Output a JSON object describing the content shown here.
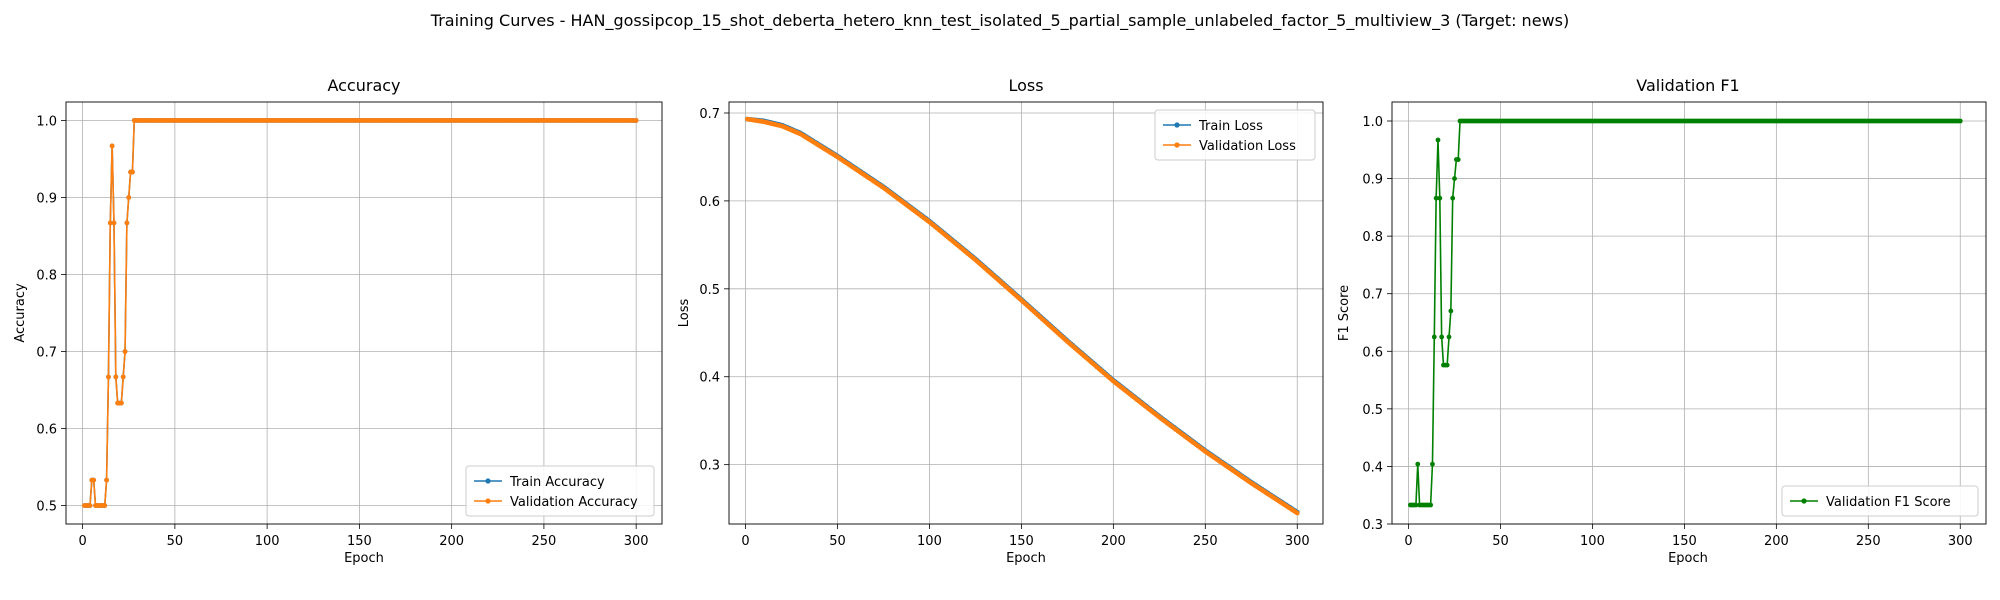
{
  "figure": {
    "title": "Training Curves - HAN_gossipcop_15_shot_deberta_hetero_knn_test_isolated_5_partial_sample_unlabeled_factor_5_multiview_3 (Target: news)"
  },
  "colors": {
    "blue": "#1f77b4",
    "orange": "#ff7f0e",
    "green": "#008000",
    "grid": "#b0b0b0"
  },
  "chart_data": [
    {
      "type": "line",
      "title": "Accuracy",
      "xlabel": "Epoch",
      "ylabel": "Accuracy",
      "xlim": [
        -9,
        314
      ],
      "ylim": [
        0.476,
        1.024
      ],
      "xticks": [
        0,
        50,
        100,
        150,
        200,
        250,
        300
      ],
      "yticks": [
        0.5,
        0.6,
        0.7,
        0.8,
        0.9,
        1.0
      ],
      "ytick_format": 1,
      "grid": true,
      "legend": "lower-right",
      "epochs": 300,
      "series": [
        {
          "name": "Train Accuracy",
          "color": "#1f77b4",
          "values": [
            0.5,
            0.5,
            0.5,
            0.5,
            0.533,
            0.533,
            0.5,
            0.5,
            0.5,
            0.5,
            0.5,
            0.5,
            0.533,
            0.667,
            0.867,
            0.967,
            0.867,
            0.667,
            0.633,
            0.633,
            0.633,
            0.667,
            0.7,
            0.867,
            0.9,
            0.933,
            0.933,
            1.0
          ],
          "tail_value": 1.0
        },
        {
          "name": "Validation Accuracy",
          "color": "#ff7f0e",
          "values": [
            0.5,
            0.5,
            0.5,
            0.5,
            0.533,
            0.533,
            0.5,
            0.5,
            0.5,
            0.5,
            0.5,
            0.5,
            0.533,
            0.667,
            0.867,
            0.967,
            0.867,
            0.667,
            0.633,
            0.633,
            0.633,
            0.667,
            0.7,
            0.867,
            0.9,
            0.933,
            0.933,
            1.0
          ],
          "tail_value": 1.0
        }
      ]
    },
    {
      "type": "line",
      "title": "Loss",
      "xlabel": "Epoch",
      "ylabel": "Loss",
      "xlim": [
        -9,
        314
      ],
      "ylim": [
        0.2325,
        0.7125
      ],
      "xticks": [
        0,
        50,
        100,
        150,
        200,
        250,
        300
      ],
      "yticks": [
        0.3,
        0.4,
        0.5,
        0.6,
        0.7
      ],
      "ytick_format": 1,
      "grid": true,
      "legend": "top-right",
      "epochs": 300,
      "series": [
        {
          "name": "Train Loss",
          "color": "#1f77b4",
          "keypoints": [
            [
              1,
              0.693
            ],
            [
              10,
              0.691
            ],
            [
              20,
              0.686
            ],
            [
              30,
              0.677
            ],
            [
              40,
              0.664
            ],
            [
              50,
              0.651
            ],
            [
              75,
              0.616
            ],
            [
              100,
              0.577
            ],
            [
              125,
              0.534
            ],
            [
              150,
              0.488
            ],
            [
              175,
              0.441
            ],
            [
              200,
              0.396
            ],
            [
              225,
              0.355
            ],
            [
              250,
              0.316
            ],
            [
              275,
              0.28
            ],
            [
              300,
              0.246
            ]
          ]
        },
        {
          "name": "Validation Loss",
          "color": "#ff7f0e",
          "keypoints": [
            [
              1,
              0.693
            ],
            [
              10,
              0.69
            ],
            [
              20,
              0.685
            ],
            [
              30,
              0.676
            ],
            [
              40,
              0.663
            ],
            [
              50,
              0.65
            ],
            [
              75,
              0.615
            ],
            [
              100,
              0.576
            ],
            [
              125,
              0.533
            ],
            [
              150,
              0.487
            ],
            [
              175,
              0.44
            ],
            [
              200,
              0.395
            ],
            [
              225,
              0.354
            ],
            [
              250,
              0.315
            ],
            [
              275,
              0.279
            ],
            [
              300,
              0.245
            ]
          ]
        }
      ]
    },
    {
      "type": "line",
      "title": "Validation F1",
      "xlabel": "Epoch",
      "ylabel": "F1 Score",
      "xlim": [
        -9,
        314
      ],
      "ylim": [
        0.3,
        1.033
      ],
      "xticks": [
        0,
        50,
        100,
        150,
        200,
        250,
        300
      ],
      "yticks": [
        0.3,
        0.4,
        0.5,
        0.6,
        0.7,
        0.8,
        0.9,
        1.0
      ],
      "ytick_format": 1,
      "grid": true,
      "legend": "lower-right",
      "epochs": 300,
      "series": [
        {
          "name": "Validation F1 Score",
          "color": "#008000",
          "values": [
            0.333,
            0.333,
            0.333,
            0.333,
            0.404,
            0.333,
            0.333,
            0.333,
            0.333,
            0.333,
            0.333,
            0.333,
            0.404,
            0.625,
            0.866,
            0.967,
            0.866,
            0.625,
            0.576,
            0.576,
            0.576,
            0.625,
            0.67,
            0.866,
            0.9,
            0.933,
            0.933,
            1.0
          ],
          "tail_value": 1.0
        }
      ]
    }
  ]
}
